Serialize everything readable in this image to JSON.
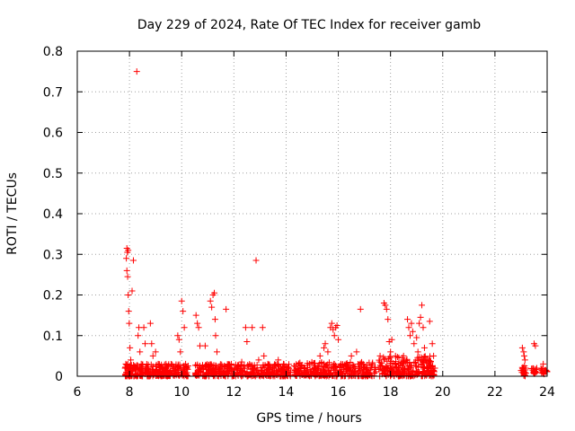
{
  "chart_data": {
    "type": "scatter",
    "title": "Day 229 of 2024, Rate Of TEC Index for receiver gamb",
    "xlabel": "GPS time / hours",
    "ylabel": "ROTI / TECUs",
    "xlim": [
      6,
      24
    ],
    "ylim": [
      0,
      0.8
    ],
    "xticks": [
      6,
      8,
      10,
      12,
      14,
      16,
      18,
      20,
      22,
      24
    ],
    "yticks": [
      0,
      0.1,
      0.2,
      0.3,
      0.4,
      0.5,
      0.6,
      0.7,
      0.8
    ],
    "xtick_labels": [
      "6",
      "8",
      "10",
      "12",
      "14",
      "16",
      "18",
      "20",
      "22",
      "24"
    ],
    "ytick_labels": [
      "0",
      "0.1",
      "0.2",
      "0.3",
      "0.4",
      "0.5",
      "0.6",
      "0.7",
      "0.8"
    ],
    "grid": true,
    "marker": "plus",
    "color": "#ff0000",
    "series": [
      {
        "points": [
          [
            7.83,
            0.02
          ],
          [
            7.86,
            0.03
          ],
          [
            7.88,
            0.01
          ],
          [
            7.9,
            0.315
          ],
          [
            7.92,
            0.305
          ],
          [
            7.95,
            0.31
          ],
          [
            7.88,
            0.29
          ],
          [
            7.9,
            0.26
          ],
          [
            7.93,
            0.245
          ],
          [
            7.95,
            0.2
          ],
          [
            7.97,
            0.16
          ],
          [
            7.99,
            0.13
          ],
          [
            8.02,
            0.07
          ],
          [
            8.05,
            0.04
          ],
          [
            8.1,
            0.21
          ],
          [
            8.15,
            0.285
          ],
          [
            8.22,
            0.02
          ],
          [
            8.28,
            0.75
          ],
          [
            8.33,
            0.1
          ],
          [
            8.36,
            0.12
          ],
          [
            8.4,
            0.06
          ],
          [
            8.45,
            0.03
          ],
          [
            8.55,
            0.12
          ],
          [
            8.6,
            0.08
          ],
          [
            8.7,
            0.02
          ],
          [
            8.8,
            0.13
          ],
          [
            8.85,
            0.08
          ],
          [
            8.9,
            0.05
          ],
          [
            9.0,
            0.06
          ],
          [
            9.1,
            0.03
          ],
          [
            9.25,
            0.02
          ],
          [
            9.4,
            0.03
          ],
          [
            9.55,
            0.01
          ],
          [
            9.7,
            0.02
          ],
          [
            9.85,
            0.1
          ],
          [
            9.9,
            0.09
          ],
          [
            9.95,
            0.06
          ],
          [
            10.0,
            0.185
          ],
          [
            10.05,
            0.16
          ],
          [
            10.1,
            0.12
          ],
          [
            10.15,
            0.03
          ],
          [
            10.55,
            0.15
          ],
          [
            10.6,
            0.13
          ],
          [
            10.65,
            0.12
          ],
          [
            10.7,
            0.075
          ],
          [
            10.75,
            0.02
          ],
          [
            10.9,
            0.075
          ],
          [
            11.1,
            0.185
          ],
          [
            11.15,
            0.17
          ],
          [
            11.2,
            0.2
          ],
          [
            11.25,
            0.205
          ],
          [
            11.28,
            0.14
          ],
          [
            11.3,
            0.1
          ],
          [
            11.35,
            0.06
          ],
          [
            11.5,
            0.02
          ],
          [
            11.7,
            0.165
          ],
          [
            11.9,
            0.03
          ],
          [
            12.1,
            0.02
          ],
          [
            12.3,
            0.035
          ],
          [
            12.45,
            0.12
          ],
          [
            12.5,
            0.085
          ],
          [
            12.7,
            0.12
          ],
          [
            12.85,
            0.285
          ],
          [
            12.95,
            0.04
          ],
          [
            13.1,
            0.12
          ],
          [
            13.15,
            0.05
          ],
          [
            13.3,
            0.03
          ],
          [
            13.5,
            0.02
          ],
          [
            13.7,
            0.04
          ],
          [
            13.9,
            0.03
          ],
          [
            14.1,
            0.02
          ],
          [
            14.4,
            0.01
          ],
          [
            14.6,
            0.02
          ],
          [
            14.9,
            0.03
          ],
          [
            15.1,
            0.02
          ],
          [
            15.3,
            0.05
          ],
          [
            15.45,
            0.07
          ],
          [
            15.5,
            0.08
          ],
          [
            15.6,
            0.06
          ],
          [
            15.7,
            0.12
          ],
          [
            15.75,
            0.13
          ],
          [
            15.8,
            0.115
          ],
          [
            15.85,
            0.1
          ],
          [
            15.9,
            0.12
          ],
          [
            15.95,
            0.125
          ],
          [
            16.0,
            0.09
          ],
          [
            16.1,
            0.03
          ],
          [
            16.3,
            0.03
          ],
          [
            16.5,
            0.05
          ],
          [
            16.7,
            0.06
          ],
          [
            16.85,
            0.165
          ],
          [
            16.95,
            0.03
          ],
          [
            17.1,
            0.02
          ],
          [
            17.3,
            0.03
          ],
          [
            17.6,
            0.05
          ],
          [
            17.75,
            0.18
          ],
          [
            17.8,
            0.175
          ],
          [
            17.85,
            0.165
          ],
          [
            17.9,
            0.14
          ],
          [
            17.95,
            0.085
          ],
          [
            18.0,
            0.06
          ],
          [
            18.05,
            0.09
          ],
          [
            18.2,
            0.03
          ],
          [
            18.3,
            0.02
          ],
          [
            18.5,
            0.05
          ],
          [
            18.65,
            0.14
          ],
          [
            18.7,
            0.12
          ],
          [
            18.75,
            0.1
          ],
          [
            18.8,
            0.13
          ],
          [
            18.85,
            0.11
          ],
          [
            18.9,
            0.08
          ],
          [
            19.0,
            0.095
          ],
          [
            19.05,
            0.06
          ],
          [
            19.1,
            0.13
          ],
          [
            19.15,
            0.145
          ],
          [
            19.2,
            0.175
          ],
          [
            19.25,
            0.12
          ],
          [
            19.3,
            0.07
          ],
          [
            19.4,
            0.04
          ],
          [
            19.5,
            0.135
          ],
          [
            19.6,
            0.08
          ],
          [
            19.65,
            0.05
          ],
          [
            19.7,
            0.02
          ],
          [
            23.05,
            0.07
          ],
          [
            23.1,
            0.06
          ],
          [
            23.12,
            0.05
          ],
          [
            23.15,
            0.04
          ],
          [
            23.18,
            0.02
          ],
          [
            23.5,
            0.08
          ],
          [
            23.55,
            0.075
          ],
          [
            23.6,
            0.02
          ],
          [
            23.85,
            0.03
          ],
          [
            23.95,
            0.015
          ]
        ],
        "bands": [
          {
            "x": [
              7.83,
              10.25
            ],
            "y": [
              0.0,
              0.03
            ],
            "n": 280
          },
          {
            "x": [
              10.5,
              14.2
            ],
            "y": [
              0.0,
              0.03
            ],
            "n": 360
          },
          {
            "x": [
              14.3,
              17.45
            ],
            "y": [
              0.0,
              0.035
            ],
            "n": 300
          },
          {
            "x": [
              17.55,
              19.7
            ],
            "y": [
              0.0,
              0.05
            ],
            "n": 240
          },
          {
            "x": [
              23.0,
              23.2
            ],
            "y": [
              0.0,
              0.03
            ],
            "n": 20
          },
          {
            "x": [
              23.4,
              23.6
            ],
            "y": [
              0.005,
              0.02
            ],
            "n": 16
          },
          {
            "x": [
              23.75,
              24.0
            ],
            "y": [
              0.005,
              0.02
            ],
            "n": 16
          }
        ]
      }
    ]
  }
}
